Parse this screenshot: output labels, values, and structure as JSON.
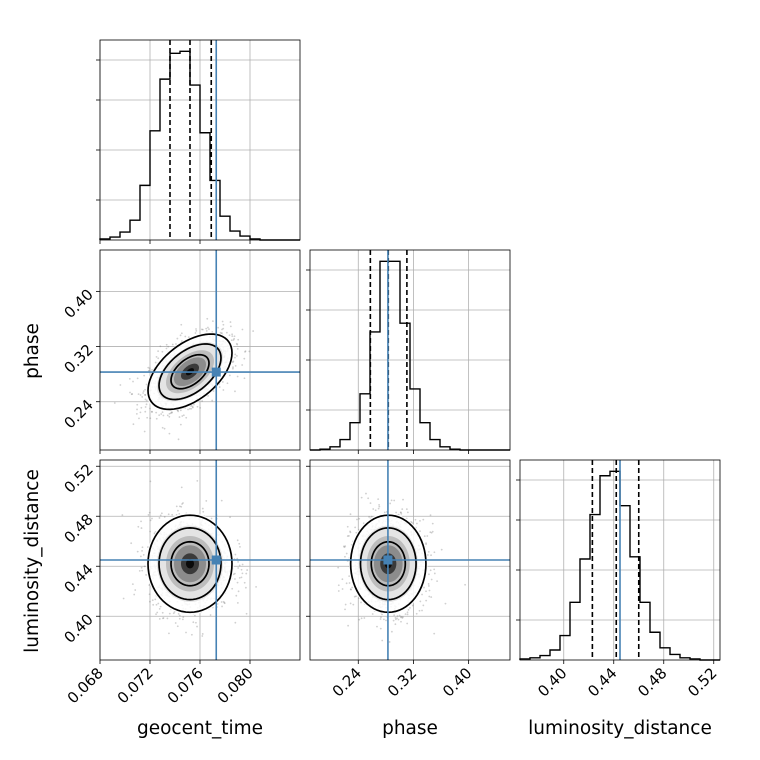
{
  "chart_data": {
    "type": "corner",
    "parameters": [
      "geocent_time",
      "phase",
      "luminosity_distance"
    ],
    "truths": {
      "geocent_time": 0.0773,
      "phase": 0.283,
      "luminosity_distance": 0.445
    },
    "truth_color": "#4682b4",
    "ranges": {
      "geocent_time": [
        0.068,
        0.084
      ],
      "phase": [
        0.17,
        0.46
      ],
      "luminosity_distance": [
        0.365,
        0.525
      ]
    },
    "ticks": {
      "geocent_time": {
        "values": [
          0.068,
          0.072,
          0.076,
          0.08
        ],
        "labels": [
          "0.068",
          "0.072",
          "0.076",
          "0.080"
        ]
      },
      "phase": {
        "values": [
          0.24,
          0.32,
          0.4
        ],
        "labels": [
          "0.24",
          "0.32",
          "0.40"
        ]
      },
      "luminosity_distance": {
        "values": [
          0.4,
          0.44,
          0.48,
          0.52
        ],
        "labels": [
          "0.40",
          "0.44",
          "0.48",
          "0.52"
        ]
      }
    },
    "xlabels": [
      "geocent_time",
      "phase",
      "luminosity_distance"
    ],
    "ylabels": [
      "",
      "phase",
      "luminosity_distance"
    ],
    "marginals": [
      {
        "param": "geocent_time",
        "bins": 20,
        "counts": [
          1,
          3,
          8,
          20,
          55,
          110,
          162,
          188,
          190,
          156,
          108,
          60,
          24,
          9,
          4,
          1,
          0,
          0,
          0,
          0
        ],
        "quantiles": [
          0.0736,
          0.0752,
          0.0769
        ]
      },
      {
        "param": "phase",
        "bins": 20,
        "counts": [
          0,
          1,
          4,
          13,
          34,
          70,
          147,
          235,
          235,
          158,
          76,
          34,
          13,
          4,
          1,
          0,
          0,
          0,
          0,
          0
        ],
        "quantiles": [
          0.2575,
          0.2835,
          0.3105
        ]
      },
      {
        "param": "luminosity_distance",
        "bins": 20,
        "counts": [
          1,
          2,
          4,
          9,
          22,
          52,
          91,
          131,
          166,
          170,
          139,
          93,
          52,
          25,
          11,
          5,
          2,
          1,
          0,
          0
        ],
        "quantiles": [
          0.4229,
          0.442,
          0.46
        ]
      }
    ],
    "pairs": [
      {
        "x": "geocent_time",
        "y": "phase",
        "center": [
          0.0752,
          0.2835
        ],
        "sigma": [
          0.0016,
          0.026
        ],
        "rho": 0.5
      },
      {
        "x": "geocent_time",
        "y": "luminosity_distance",
        "center": [
          0.0752,
          0.442
        ],
        "sigma": [
          0.0016,
          0.0185
        ],
        "rho": 0.0
      },
      {
        "x": "phase",
        "y": "luminosity_distance",
        "center": [
          0.2835,
          0.442
        ],
        "sigma": [
          0.026,
          0.0185
        ],
        "rho": 0.0
      }
    ],
    "grid": true
  }
}
